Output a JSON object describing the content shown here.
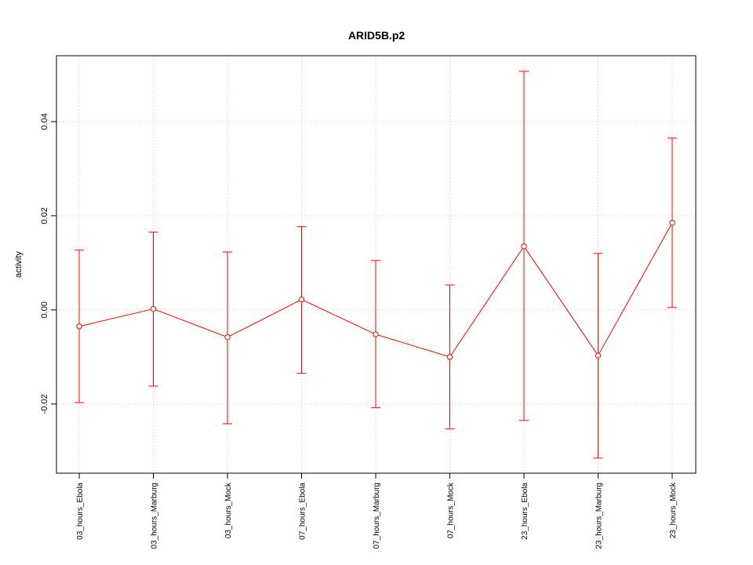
{
  "chart_data": {
    "type": "line",
    "title": "ARID5B.p2",
    "xlabel": "",
    "ylabel": "activity",
    "categories": [
      "03_hours_Ebola",
      "03_hours_Marburg",
      "03_hours_Mock",
      "07_hours_Ebola",
      "07_hours_Marburg",
      "07_hours_Mock",
      "23_hours_Ebola",
      "23_hours_Marburg",
      "23_hours_Mock"
    ],
    "values": [
      -0.0035,
      0.0002,
      -0.0058,
      0.0022,
      -0.0052,
      -0.01,
      0.0135,
      -0.0097,
      0.0185
    ],
    "error_upper": [
      0.0127,
      0.0165,
      0.0123,
      0.0177,
      0.0105,
      0.0053,
      0.0507,
      0.012,
      0.0365
    ],
    "error_lower": [
      -0.0197,
      -0.0162,
      -0.0242,
      -0.0135,
      -0.0208,
      -0.0253,
      -0.0235,
      -0.0315,
      0.0005
    ],
    "yticks": [
      -0.02,
      0.0,
      0.02,
      0.04
    ],
    "ytick_labels": [
      "-0.02",
      "0.00",
      "0.02",
      "0.04"
    ],
    "ylim": [
      -0.0347,
      0.054
    ],
    "grid": true,
    "color": "#ff0000"
  }
}
